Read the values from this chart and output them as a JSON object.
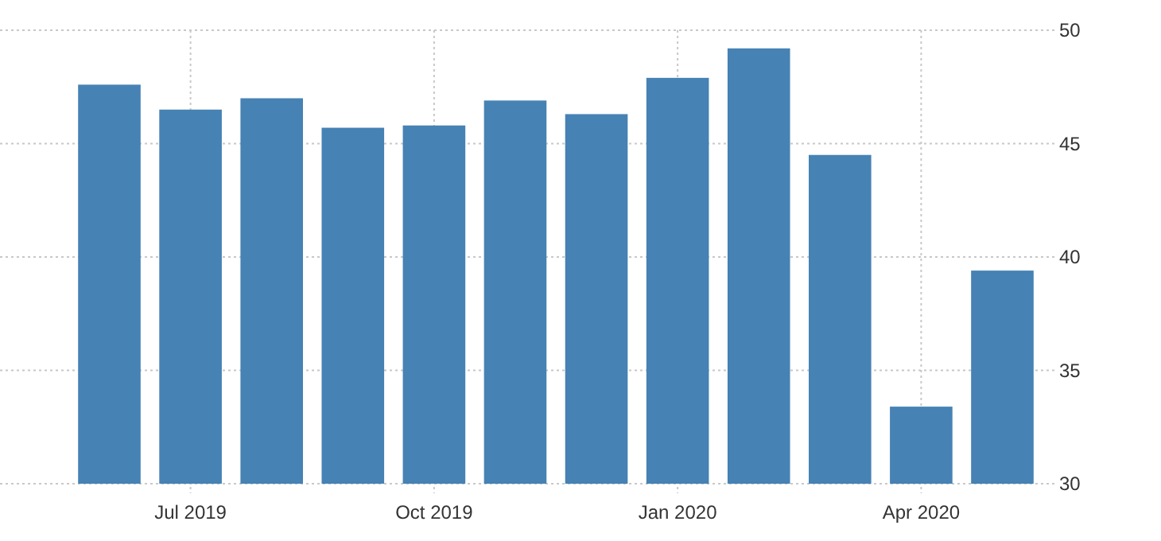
{
  "chart_data": {
    "type": "bar",
    "categories": [
      null,
      "Jul 2019",
      null,
      null,
      "Oct 2019",
      null,
      null,
      "Jan 2020",
      null,
      null,
      "Apr 2020",
      null
    ],
    "values": [
      47.6,
      46.5,
      47.0,
      45.7,
      45.8,
      46.9,
      46.3,
      47.9,
      49.2,
      44.5,
      33.4,
      39.4
    ],
    "color": "#4682b4",
    "ylim": [
      30,
      50
    ],
    "yticks": [
      30,
      35,
      40,
      45,
      50
    ],
    "grid": true
  }
}
